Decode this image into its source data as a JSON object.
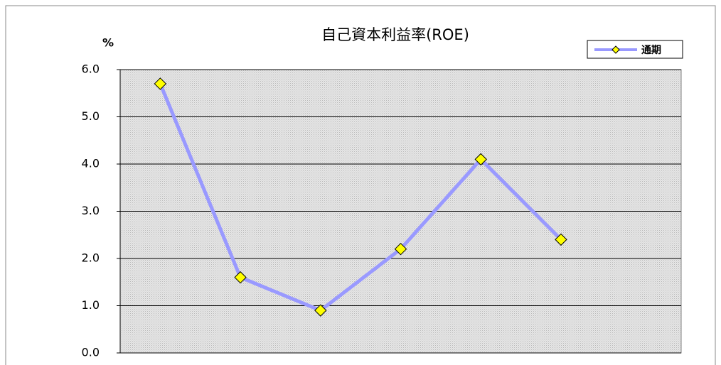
{
  "chart_data": {
    "type": "line",
    "title": "自己資本利益率(ROE)",
    "ylabel": "%",
    "categories": [
      null,
      null,
      null,
      null,
      null,
      null,
      null
    ],
    "series": [
      {
        "name": "通期",
        "color": "#9999ff",
        "marker_color": "#ffff00",
        "values": [
          5.7,
          1.6,
          0.9,
          2.2,
          4.1,
          2.4,
          null
        ]
      }
    ],
    "ylim": [
      0,
      6
    ],
    "yticks": [
      {
        "value": 0,
        "label": "0.0"
      },
      {
        "value": 1,
        "label": "1.0"
      },
      {
        "value": 2,
        "label": "2.0"
      },
      {
        "value": 3,
        "label": "3.0"
      },
      {
        "value": 4,
        "label": "4.0"
      },
      {
        "value": 5,
        "label": "5.0"
      },
      {
        "value": 6,
        "label": "6.0"
      }
    ],
    "grid": true,
    "legend": "top-right"
  }
}
